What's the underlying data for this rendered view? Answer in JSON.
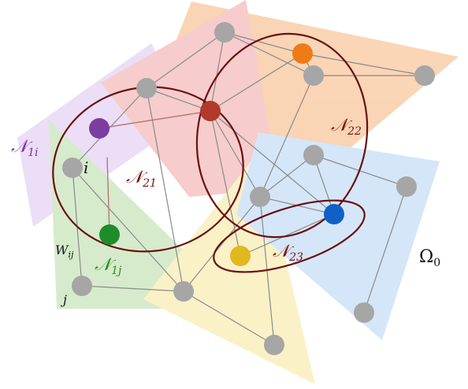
{
  "colors": {
    "region_orange": "#f5b27a",
    "region_pink": "#f2a4a4",
    "region_purple": "#dcc4ef",
    "region_green": "#b6dca4",
    "region_yellow": "#f9e79a",
    "region_blue": "#b4d2f4",
    "edge": "#8a8a8a",
    "node_gray": "#a6a6a6",
    "node_purple": "#7a3da0",
    "node_green": "#1f8c2a",
    "node_red": "#b23a2a",
    "node_orange": "#f07a14",
    "node_blue": "#1060c8",
    "node_yellow": "#e0b820",
    "ellipse": "#6a1010",
    "label_dark_red": "#7a1010",
    "label_purple": "#7a2fb0",
    "label_green": "#2a8a20",
    "label_black": "#111111"
  },
  "labels": {
    "n1i": {
      "main": "𝒩",
      "sub": "1i"
    },
    "i": "i",
    "n21": {
      "main": "𝒩",
      "sub": "21"
    },
    "n22": {
      "main": "𝒩",
      "sub": "22"
    },
    "n23": {
      "main": "𝒩",
      "sub": "23"
    },
    "n1j": {
      "main": "𝒩",
      "sub": "1j"
    },
    "wij": {
      "main": "W",
      "sub": "ij"
    },
    "j": "j",
    "omega0": {
      "main": "Ω",
      "sub": "0"
    }
  }
}
